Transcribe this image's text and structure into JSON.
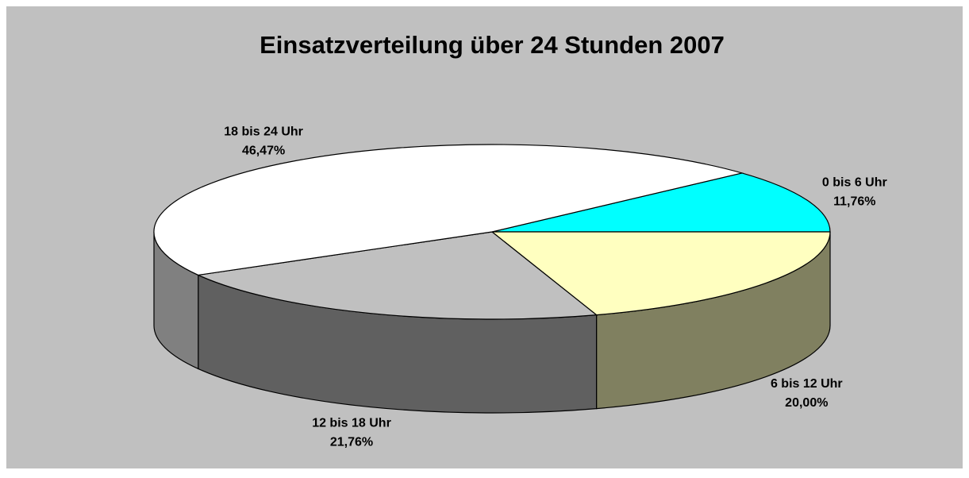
{
  "chart_data": {
    "type": "pie",
    "title": "Einsatzverteilung über 24 Stunden 2007",
    "categories": [
      "0 bis 6 Uhr",
      "6 bis 12 Uhr",
      "12 bis 18 Uhr",
      "18 bis 24 Uhr"
    ],
    "values": [
      11.76,
      20.0,
      21.76,
      46.47
    ],
    "value_labels": [
      "11,76%",
      "20,00%",
      "21,76%",
      "46,47%"
    ],
    "colors": [
      "#00ffff",
      "#ffffc0",
      "#c0c0c0",
      "#ffffff"
    ]
  }
}
